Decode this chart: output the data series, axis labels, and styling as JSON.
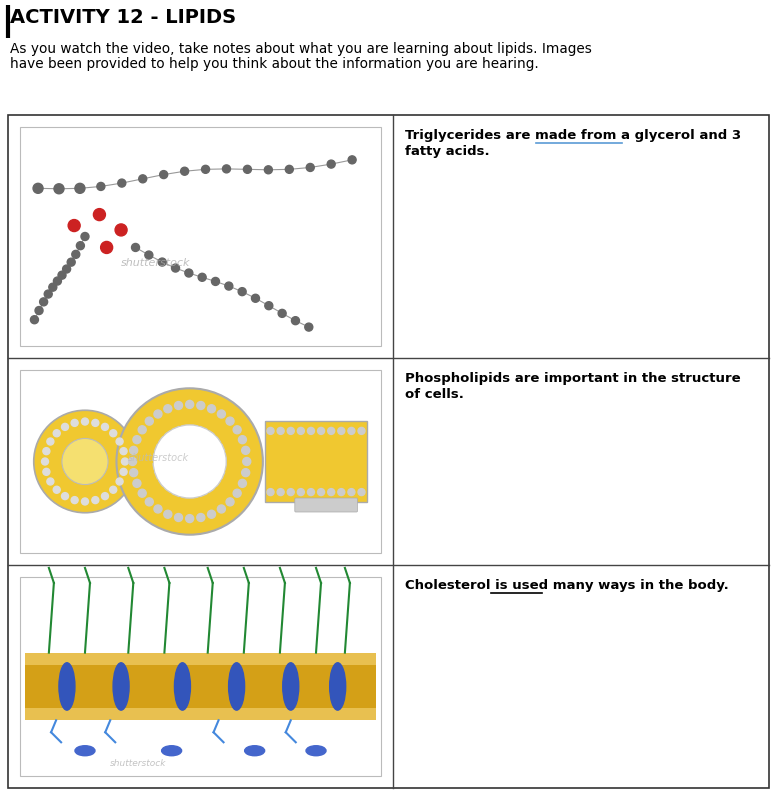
{
  "title": "ACTIVITY 12 - LIPIDS",
  "subtitle_line1": "As you watch the video, take notes about what you are learning about lipids. Images",
  "subtitle_line2": "have been provided to help you think about the information you are hearing.",
  "background_color": "#ffffff",
  "title_fontsize": 14,
  "subtitle_fontsize": 9.8,
  "table_text_fontsize": 9.5,
  "row_texts": [
    [
      "Triglycerides are made from a glycerol and 3",
      "fatty acids."
    ],
    [
      "Phospholipids are important in the structure",
      "of cells."
    ],
    [
      "Cholesterol is used many ways in the body."
    ]
  ],
  "underlines": [
    {
      "row": 0,
      "line": 0,
      "prefix": "Triglycerides are made ",
      "phrase": "from a glycerol",
      "color": "#5b9bd5"
    },
    {
      "row": 2,
      "line": 0,
      "prefix": "Cholesterol is ",
      "phrase": "used many",
      "color": "#000000"
    }
  ]
}
